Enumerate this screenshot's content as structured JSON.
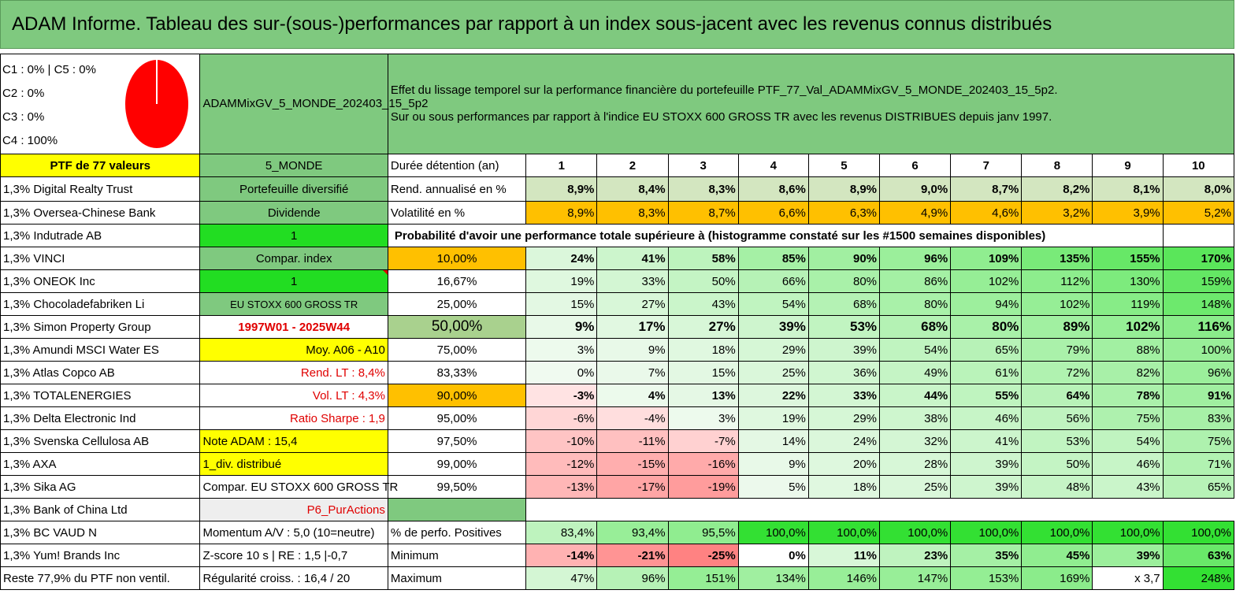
{
  "title": "ADAM Informe. Tableau des sur-(sous-)performances par rapport à un index sous-jacent avec les revenus connus distribués",
  "legend": {
    "c1c5": "C1 : 0% | C5 : 0%",
    "c2": "C2 : 0%",
    "c3": "C3 : 0%",
    "c4": "C4 : 100%"
  },
  "pie_color": "#ff0000",
  "portfolio_name": "ADAMMixGV_5_MONDE_202403_15_5p2",
  "description": {
    "line1": "Effet du lissage temporel sur la performance financière du portefeuille PTF_77_Val_ADAMMixGV_5_MONDE_202403_15_5p2.",
    "line2": "Sur ou sous performances par rapport à l'indice EU STOXX 600 GROSS TR avec les revenus DISTRIBUES depuis janv 1997."
  },
  "col1_header": "PTF de 77 valeurs",
  "col2_header": "5_MONDE",
  "duration_label": "Durée détention (an)",
  "years": [
    "1",
    "2",
    "3",
    "4",
    "5",
    "6",
    "7",
    "8",
    "9",
    "10"
  ],
  "holdings": [
    "1,3% Digital Realty Trust",
    "1,3% Oversea-Chinese Bank",
    "1,3% Indutrade AB",
    "1,3% VINCI",
    "1,3% ONEOK Inc",
    "1,3% Chocoladefabriken Li",
    "1,3% Simon Property Group",
    "1,3% Amundi MSCI Water ES",
    "1,3% Atlas Copco AB",
    "1,3% TOTALENERGIES",
    "1,3% Delta Electronic Ind",
    "1,3% Svenska Cellulosa AB",
    "1,3% AXA",
    "1,3% Sika AG",
    "1,3% Bank of China Ltd",
    "1,3% BC VAUD N",
    "1,3% Yum! Brands Inc",
    "Reste 77,9% du PTF non ventil."
  ],
  "info": [
    "Portefeuille diversifié",
    "Dividende",
    "1",
    "Compar. index",
    "1",
    "EU STOXX 600 GROSS TR",
    "1997W01 - 2025W44",
    "Moy. A06 - A10",
    "Rend. LT : 8,4%",
    "Vol. LT : 4,3%",
    "Ratio Sharpe : 1,9",
    "Note ADAM : 15,4",
    "1_div. distribué",
    "Compar. EU STOXX 600 GROSS TR",
    "P6_PurActions",
    "Momentum A/V : 5,0 (10=neutre)",
    "Z-score 10 s | RE : 1,5 |-0,7",
    "Régularité croiss. : 16,4 / 20"
  ],
  "rend_label": "Rend. annualisé en %",
  "rend": [
    "8,9%",
    "8,4%",
    "8,3%",
    "8,6%",
    "8,9%",
    "9,0%",
    "8,7%",
    "8,2%",
    "8,1%",
    "8,0%"
  ],
  "vol_label": "Volatilité en %",
  "vol": [
    "8,9%",
    "8,3%",
    "8,7%",
    "6,6%",
    "6,3%",
    "4,9%",
    "4,6%",
    "3,2%",
    "3,9%",
    "5,2%"
  ],
  "prob_label": "Probabilité d'avoir une performance totale supérieure à (histogramme constaté sur les #1500 semaines disponibles)",
  "prob_rows": [
    {
      "p": "10,00%",
      "v": [
        "24%",
        "41%",
        "58%",
        "85%",
        "90%",
        "96%",
        "109%",
        "135%",
        "155%",
        "170%"
      ]
    },
    {
      "p": "16,67%",
      "v": [
        "19%",
        "33%",
        "50%",
        "66%",
        "80%",
        "86%",
        "102%",
        "112%",
        "130%",
        "159%"
      ]
    },
    {
      "p": "25,00%",
      "v": [
        "15%",
        "27%",
        "43%",
        "54%",
        "68%",
        "80%",
        "94%",
        "102%",
        "119%",
        "148%"
      ]
    },
    {
      "p": "50,00%",
      "v": [
        "9%",
        "17%",
        "27%",
        "39%",
        "53%",
        "68%",
        "80%",
        "89%",
        "102%",
        "116%"
      ]
    },
    {
      "p": "75,00%",
      "v": [
        "3%",
        "9%",
        "18%",
        "29%",
        "39%",
        "54%",
        "65%",
        "79%",
        "88%",
        "100%"
      ]
    },
    {
      "p": "83,33%",
      "v": [
        "0%",
        "7%",
        "15%",
        "25%",
        "36%",
        "49%",
        "61%",
        "72%",
        "82%",
        "96%"
      ]
    },
    {
      "p": "90,00%",
      "v": [
        "-3%",
        "4%",
        "13%",
        "22%",
        "33%",
        "44%",
        "55%",
        "64%",
        "78%",
        "91%"
      ]
    },
    {
      "p": "95,00%",
      "v": [
        "-6%",
        "-4%",
        "3%",
        "19%",
        "29%",
        "38%",
        "46%",
        "56%",
        "75%",
        "83%"
      ]
    },
    {
      "p": "97,50%",
      "v": [
        "-10%",
        "-11%",
        "-7%",
        "14%",
        "24%",
        "32%",
        "41%",
        "53%",
        "54%",
        "75%"
      ]
    },
    {
      "p": "99,00%",
      "v": [
        "-12%",
        "-15%",
        "-16%",
        "9%",
        "20%",
        "28%",
        "39%",
        "50%",
        "46%",
        "71%"
      ]
    },
    {
      "p": "99,50%",
      "v": [
        "-13%",
        "-17%",
        "-19%",
        "5%",
        "18%",
        "25%",
        "39%",
        "48%",
        "43%",
        "65%"
      ]
    }
  ],
  "pos_label": "% de perfo. Positives",
  "pos": [
    "83,4%",
    "93,4%",
    "95,5%",
    "100,0%",
    "100,0%",
    "100,0%",
    "100,0%",
    "100,0%",
    "100,0%",
    "100,0%"
  ],
  "min_label": "Minimum",
  "min": [
    "-14%",
    "-21%",
    "-25%",
    "0%",
    "11%",
    "23%",
    "35%",
    "45%",
    "39%",
    "63%"
  ],
  "max_label": "Maximum",
  "max": [
    "47%",
    "96%",
    "151%",
    "134%",
    "146%",
    "147%",
    "153%",
    "169%",
    "x 3,7",
    "248%"
  ]
}
